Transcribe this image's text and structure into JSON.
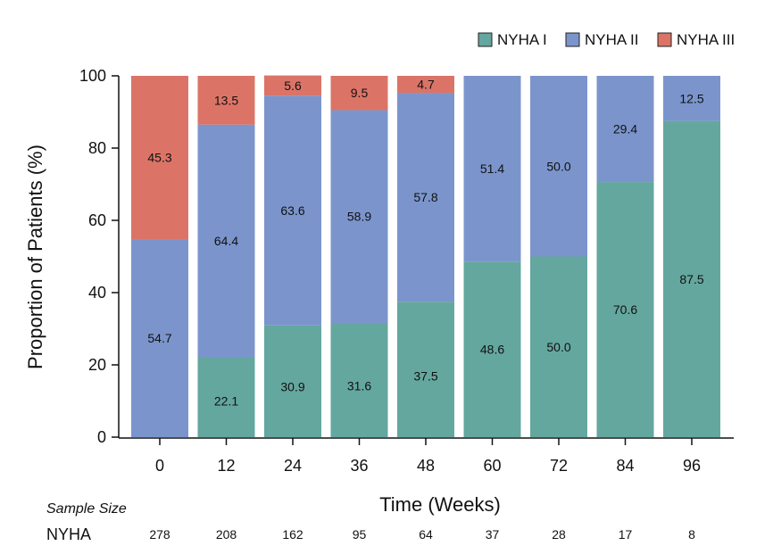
{
  "chart_data": {
    "type": "bar",
    "stacked": true,
    "title": "",
    "xlabel": "Time (Weeks)",
    "ylabel": "Proportion of Patients (%)",
    "ylim": [
      0,
      100
    ],
    "yticks": [
      0,
      20,
      40,
      60,
      80,
      100
    ],
    "categories": [
      "0",
      "12",
      "24",
      "36",
      "48",
      "60",
      "72",
      "84",
      "96"
    ],
    "legend_position": "top-right",
    "series": [
      {
        "name": "NYHA I",
        "color": "#64a79f",
        "values": [
          0,
          22.1,
          30.9,
          31.6,
          37.5,
          48.6,
          50.0,
          70.6,
          87.5
        ],
        "labels": [
          "",
          "22.1",
          "30.9",
          "31.6",
          "37.5",
          "48.6",
          "50.0",
          "70.6",
          "87.5"
        ]
      },
      {
        "name": "NYHA II",
        "color": "#7b95cc",
        "values": [
          54.7,
          64.4,
          63.6,
          58.9,
          57.8,
          51.4,
          50.0,
          29.4,
          12.5
        ],
        "labels": [
          "54.7",
          "64.4",
          "63.6",
          "58.9",
          "57.8",
          "51.4",
          "50.0",
          "29.4",
          "12.5"
        ]
      },
      {
        "name": "NYHA III",
        "color": "#db7467",
        "values": [
          45.3,
          13.5,
          5.6,
          9.5,
          4.7,
          0,
          0,
          0,
          0
        ],
        "labels": [
          "45.3",
          "13.5",
          "5.6",
          "9.5",
          "4.7",
          "",
          "",
          "",
          ""
        ]
      }
    ],
    "sample_size": {
      "title": "Sample Size",
      "row_label": "NYHA",
      "values": [
        "278",
        "208",
        "162",
        "95",
        "64",
        "37",
        "28",
        "17",
        "8"
      ]
    }
  }
}
